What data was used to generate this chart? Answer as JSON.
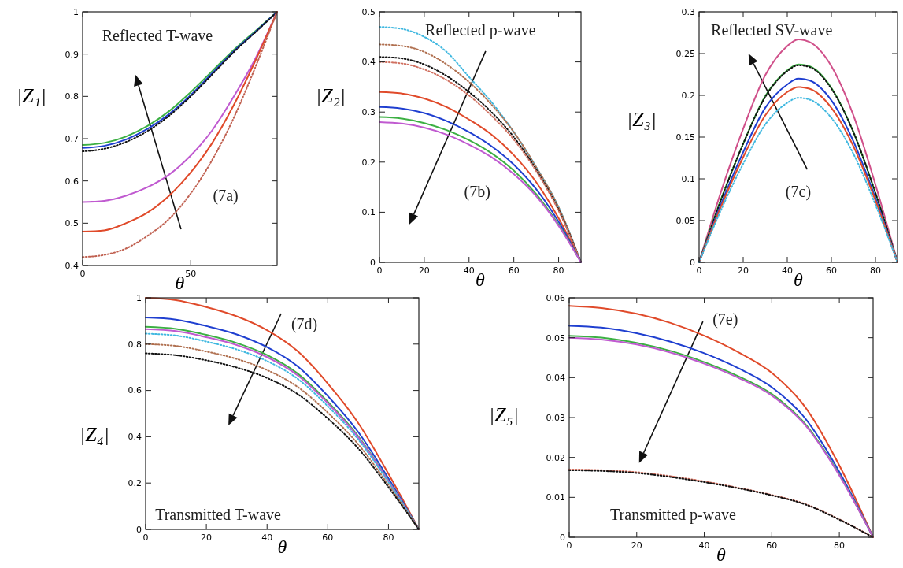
{
  "chart_data": [
    {
      "type": "line",
      "xlabel": "θ",
      "ylabel": "|Z₁|",
      "xlim": [
        0,
        90
      ],
      "xticks": [
        0,
        50
      ],
      "ylim": [
        0.4,
        1
      ],
      "yticks": [
        0.4,
        0.5,
        0.6,
        0.7,
        0.8,
        0.9,
        1
      ],
      "grid": false,
      "marker": "none",
      "annotations": [
        "Reflected T-wave",
        "(7a)"
      ],
      "x": [
        0,
        10,
        20,
        30,
        40,
        50,
        60,
        70,
        80,
        90
      ],
      "series": [
        {
          "color": "#3cb043",
          "line_style": "solid",
          "values": [
            0.685,
            0.69,
            0.705,
            0.73,
            0.765,
            0.81,
            0.86,
            0.91,
            0.955,
            1
          ]
        },
        {
          "color": "#1f3fd0",
          "line_style": "solid",
          "values": [
            0.678,
            0.683,
            0.698,
            0.723,
            0.758,
            0.803,
            0.855,
            0.907,
            0.953,
            1
          ]
        },
        {
          "color": "#111111",
          "line_style": "dotted",
          "values": [
            0.67,
            0.676,
            0.692,
            0.718,
            0.754,
            0.8,
            0.852,
            0.905,
            0.952,
            1
          ]
        },
        {
          "color": "#c05ad0",
          "line_style": "solid",
          "values": [
            0.55,
            0.553,
            0.565,
            0.585,
            0.615,
            0.66,
            0.72,
            0.8,
            0.89,
            1
          ]
        },
        {
          "color": "#e04a2a",
          "line_style": "solid",
          "values": [
            0.48,
            0.483,
            0.5,
            0.525,
            0.565,
            0.62,
            0.69,
            0.78,
            0.885,
            1
          ]
        },
        {
          "color": "#c06050",
          "line_style": "dotted",
          "values": [
            0.42,
            0.425,
            0.44,
            0.47,
            0.51,
            0.57,
            0.65,
            0.75,
            0.87,
            1
          ]
        }
      ]
    },
    {
      "type": "line",
      "xlabel": "θ",
      "ylabel": "|Z₂|",
      "xlim": [
        0,
        90
      ],
      "xticks": [
        0,
        20,
        40,
        60,
        80
      ],
      "ylim": [
        0,
        0.5
      ],
      "yticks": [
        0,
        0.1,
        0.2,
        0.3,
        0.4,
        0.5
      ],
      "grid": false,
      "marker": "none",
      "annotations": [
        "Reflected p-wave",
        "(7b)"
      ],
      "x": [
        0,
        10,
        20,
        30,
        40,
        50,
        60,
        70,
        80,
        90
      ],
      "series": [
        {
          "color": "#40b8e0",
          "line_style": "dotted",
          "values": [
            0.47,
            0.466,
            0.45,
            0.42,
            0.37,
            0.32,
            0.26,
            0.19,
            0.11,
            0
          ]
        },
        {
          "color": "#b07050",
          "line_style": "dotted",
          "values": [
            0.435,
            0.432,
            0.42,
            0.395,
            0.36,
            0.315,
            0.26,
            0.19,
            0.11,
            0
          ]
        },
        {
          "color": "#111111",
          "line_style": "dotted",
          "values": [
            0.41,
            0.407,
            0.395,
            0.372,
            0.34,
            0.3,
            0.25,
            0.185,
            0.105,
            0
          ]
        },
        {
          "color": "#d07060",
          "line_style": "dotted",
          "values": [
            0.4,
            0.397,
            0.385,
            0.364,
            0.333,
            0.293,
            0.245,
            0.182,
            0.103,
            0
          ]
        },
        {
          "color": "#e04a2a",
          "line_style": "solid",
          "values": [
            0.34,
            0.337,
            0.327,
            0.31,
            0.285,
            0.255,
            0.214,
            0.16,
            0.088,
            0
          ]
        },
        {
          "color": "#1f3fd0",
          "line_style": "solid",
          "values": [
            0.31,
            0.307,
            0.298,
            0.282,
            0.26,
            0.232,
            0.195,
            0.146,
            0.081,
            0
          ]
        },
        {
          "color": "#3cb043",
          "line_style": "solid",
          "values": [
            0.29,
            0.287,
            0.278,
            0.264,
            0.244,
            0.218,
            0.183,
            0.136,
            0.075,
            0
          ]
        },
        {
          "color": "#c05ad0",
          "line_style": "solid",
          "values": [
            0.28,
            0.277,
            0.269,
            0.255,
            0.235,
            0.21,
            0.176,
            0.132,
            0.073,
            0
          ]
        }
      ]
    },
    {
      "type": "line",
      "xlabel": "θ",
      "ylabel": "|Z₃|",
      "xlim": [
        0,
        90
      ],
      "xticks": [
        0,
        20,
        40,
        60,
        80
      ],
      "ylim": [
        0,
        0.3
      ],
      "yticks": [
        0,
        0.05,
        0.1,
        0.15,
        0.2,
        0.25,
        0.3
      ],
      "grid": false,
      "marker": "none",
      "annotations": [
        "Reflected SV-wave",
        "(7c)"
      ],
      "x": [
        0,
        10,
        20,
        30,
        40,
        45,
        50,
        60,
        70,
        80,
        90
      ],
      "series": [
        {
          "color": "#d0508a",
          "line_style": "solid",
          "values": [
            0,
            0.085,
            0.16,
            0.224,
            0.259,
            0.267,
            0.264,
            0.235,
            0.176,
            0.093,
            0
          ]
        },
        {
          "color": "#3cb043",
          "line_style": "solid",
          "values": [
            0,
            0.076,
            0.142,
            0.199,
            0.23,
            0.237,
            0.235,
            0.209,
            0.156,
            0.083,
            0
          ]
        },
        {
          "color": "#111111",
          "line_style": "dotted",
          "values": [
            0,
            0.075,
            0.142,
            0.198,
            0.229,
            0.236,
            0.234,
            0.208,
            0.156,
            0.083,
            0
          ]
        },
        {
          "color": "#1f3fd0",
          "line_style": "solid",
          "values": [
            0,
            0.07,
            0.132,
            0.185,
            0.213,
            0.22,
            0.218,
            0.194,
            0.145,
            0.077,
            0
          ]
        },
        {
          "color": "#e04a2a",
          "line_style": "solid",
          "values": [
            0,
            0.067,
            0.126,
            0.176,
            0.204,
            0.21,
            0.208,
            0.185,
            0.139,
            0.074,
            0
          ]
        },
        {
          "color": "#40b8e0",
          "line_style": "dotted",
          "values": [
            0,
            0.063,
            0.118,
            0.165,
            0.191,
            0.197,
            0.195,
            0.173,
            0.13,
            0.069,
            0
          ]
        }
      ]
    },
    {
      "type": "line",
      "xlabel": "θ",
      "ylabel": "|Z₄|",
      "xlim": [
        0,
        90
      ],
      "xticks": [
        0,
        20,
        40,
        60,
        80
      ],
      "ylim": [
        0,
        1
      ],
      "yticks": [
        0,
        0.2,
        0.4,
        0.6,
        0.8,
        1
      ],
      "grid": false,
      "marker": "none",
      "annotations": [
        "(7d)",
        "Transmitted T-wave"
      ],
      "x": [
        0,
        10,
        20,
        30,
        40,
        50,
        60,
        70,
        80,
        90
      ],
      "series": [
        {
          "color": "#e04a2a",
          "line_style": "solid",
          "values": [
            1,
            0.99,
            0.96,
            0.92,
            0.86,
            0.77,
            0.63,
            0.46,
            0.24,
            0
          ]
        },
        {
          "color": "#1f3fd0",
          "line_style": "solid",
          "values": [
            0.915,
            0.906,
            0.878,
            0.842,
            0.787,
            0.705,
            0.576,
            0.421,
            0.22,
            0
          ]
        },
        {
          "color": "#3cb043",
          "line_style": "solid",
          "values": [
            0.875,
            0.866,
            0.84,
            0.805,
            0.753,
            0.674,
            0.551,
            0.403,
            0.21,
            0
          ]
        },
        {
          "color": "#c05ad0",
          "line_style": "solid",
          "values": [
            0.865,
            0.856,
            0.83,
            0.796,
            0.744,
            0.666,
            0.545,
            0.398,
            0.208,
            0
          ]
        },
        {
          "color": "#40b8e0",
          "line_style": "dotted",
          "values": [
            0.845,
            0.837,
            0.811,
            0.777,
            0.727,
            0.651,
            0.532,
            0.389,
            0.203,
            0
          ]
        },
        {
          "color": "#b07050",
          "line_style": "dotted",
          "values": [
            0.8,
            0.792,
            0.768,
            0.736,
            0.688,
            0.616,
            0.504,
            0.368,
            0.192,
            0
          ]
        },
        {
          "color": "#111111",
          "line_style": "dotted",
          "values": [
            0.76,
            0.752,
            0.73,
            0.699,
            0.654,
            0.585,
            0.479,
            0.35,
            0.182,
            0
          ]
        }
      ]
    },
    {
      "type": "line",
      "xlabel": "θ",
      "ylabel": "|Z₅|",
      "xlim": [
        0,
        90
      ],
      "xticks": [
        0,
        20,
        40,
        60,
        80
      ],
      "ylim": [
        0,
        0.06
      ],
      "yticks": [
        0,
        0.01,
        0.02,
        0.03,
        0.04,
        0.05,
        0.06
      ],
      "grid": false,
      "marker": "none",
      "annotations": [
        "(7e)",
        "Transmitted p-wave"
      ],
      "x": [
        0,
        10,
        20,
        30,
        40,
        50,
        60,
        70,
        80,
        90
      ],
      "series": [
        {
          "color": "#e04a2a",
          "line_style": "solid",
          "values": [
            0.058,
            0.0574,
            0.056,
            0.0537,
            0.0505,
            0.0464,
            0.0412,
            0.0325,
            0.018,
            0
          ]
        },
        {
          "color": "#1f3fd0",
          "line_style": "solid",
          "values": [
            0.053,
            0.0525,
            0.0511,
            0.049,
            0.0461,
            0.0424,
            0.0376,
            0.0297,
            0.0164,
            0
          ]
        },
        {
          "color": "#3cb043",
          "line_style": "solid",
          "values": [
            0.0505,
            0.05,
            0.0487,
            0.0467,
            0.0439,
            0.0404,
            0.0359,
            0.0283,
            0.0157,
            0
          ]
        },
        {
          "color": "#c05ad0",
          "line_style": "solid",
          "values": [
            0.05,
            0.0495,
            0.0483,
            0.0463,
            0.0435,
            0.04,
            0.0355,
            0.028,
            0.0155,
            0
          ]
        },
        {
          "color": "#d07060",
          "line_style": "dotted",
          "values": [
            0.017,
            0.0168,
            0.0163,
            0.0153,
            0.014,
            0.0124,
            0.0106,
            0.0083,
            0.0045,
            0
          ]
        },
        {
          "color": "#111111",
          "line_style": "dotted",
          "values": [
            0.0168,
            0.0166,
            0.0161,
            0.0151,
            0.0138,
            0.0123,
            0.0105,
            0.0082,
            0.0044,
            0
          ]
        }
      ]
    }
  ]
}
